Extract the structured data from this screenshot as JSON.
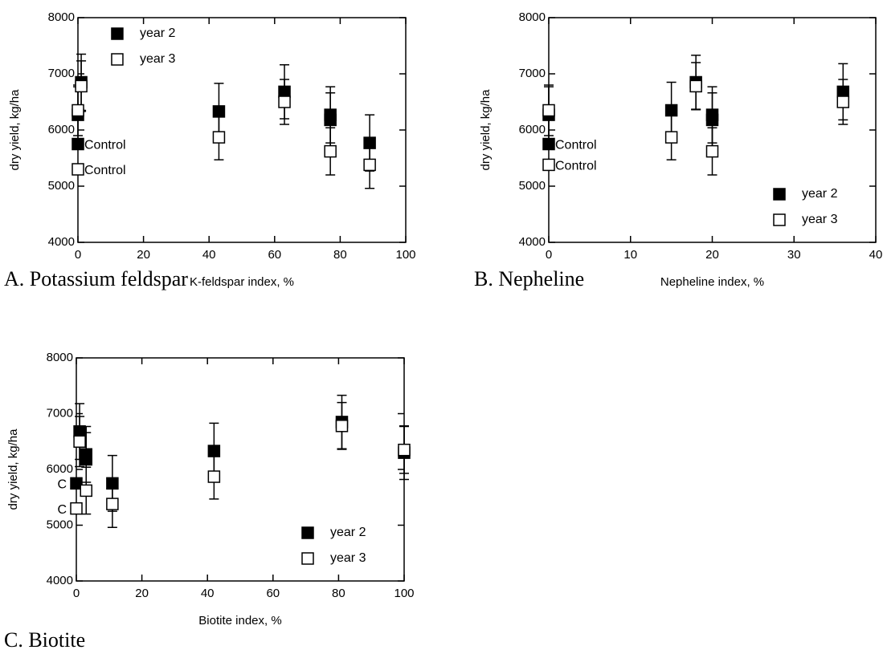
{
  "chart_data": [
    {
      "type": "scatter",
      "title": "A. Potassium feldspar",
      "x_label": "K-feldspar index, %",
      "y_label": "dry yield, kg/ha",
      "xlim": [
        0,
        100
      ],
      "xticks": [
        0,
        20,
        40,
        60,
        80,
        100
      ],
      "ylim": [
        4000,
        8000
      ],
      "yticks": [
        4000,
        5000,
        6000,
        7000,
        8000
      ],
      "legend": "upper left",
      "series": [
        {
          "name": "year 2",
          "color": "#000000",
          "filled": true,
          "x": [
            0,
            1,
            43,
            63,
            77,
            77,
            89
          ],
          "values": [
            6270,
            6850,
            6330,
            6680,
            6270,
            6180,
            5770
          ],
          "errors": [
            500,
            500,
            500,
            480,
            500,
            480,
            500
          ],
          "control": {
            "label": "Control",
            "x": 0,
            "value": 5750
          }
        },
        {
          "name": "year 3",
          "color": "#000000",
          "filled": false,
          "x": [
            0,
            1,
            43,
            63,
            77,
            89
          ],
          "values": [
            6350,
            6780,
            5870,
            6500,
            5620,
            5380
          ],
          "errors": [
            450,
            450,
            400,
            400,
            420,
            420
          ],
          "control": {
            "label": "Control",
            "x": 0,
            "value": 5300
          }
        }
      ]
    },
    {
      "type": "scatter",
      "title": "B. Nepheline",
      "x_label": "Nepheline index, %",
      "y_label": "dry yield, kg/ha",
      "xlim": [
        0,
        40
      ],
      "xticks": [
        0,
        10,
        20,
        30,
        40
      ],
      "ylim": [
        4000,
        8000
      ],
      "yticks": [
        4000,
        5000,
        6000,
        7000,
        8000
      ],
      "legend": "lower right",
      "series": [
        {
          "name": "year 2",
          "color": "#000000",
          "filled": true,
          "x": [
            0,
            15,
            18,
            20,
            20,
            36
          ],
          "values": [
            6270,
            6350,
            6850,
            6270,
            6180,
            6680
          ],
          "errors": [
            500,
            500,
            480,
            500,
            480,
            500
          ],
          "control": {
            "label": "Control",
            "x": 0,
            "value": 5750
          }
        },
        {
          "name": "year 3",
          "color": "#000000",
          "filled": false,
          "x": [
            0,
            15,
            18,
            20,
            36
          ],
          "values": [
            6350,
            5870,
            6780,
            5620,
            6500
          ],
          "errors": [
            450,
            400,
            420,
            420,
            400
          ],
          "control": {
            "label": "Control",
            "x": 0,
            "value": 5380
          }
        }
      ]
    },
    {
      "type": "scatter",
      "title": "C. Biotite",
      "x_label": "Biotite index, %",
      "y_label": "dry yield, kg/ha",
      "xlim": [
        0,
        100
      ],
      "xticks": [
        0,
        20,
        40,
        60,
        80,
        100
      ],
      "ylim": [
        4000,
        8000
      ],
      "yticks": [
        4000,
        5000,
        6000,
        7000,
        8000
      ],
      "legend": "lower right",
      "series": [
        {
          "name": "year 2",
          "color": "#000000",
          "filled": true,
          "x": [
            1,
            3,
            3,
            11,
            42,
            81,
            100
          ],
          "values": [
            6680,
            6270,
            6180,
            5750,
            6330,
            6850,
            6300
          ],
          "errors": [
            500,
            500,
            480,
            500,
            500,
            480,
            480
          ],
          "control": {
            "label": "C",
            "x": 0,
            "value": 5750
          }
        },
        {
          "name": "year 3",
          "color": "#000000",
          "filled": false,
          "x": [
            1,
            3,
            11,
            42,
            81,
            100
          ],
          "values": [
            6500,
            5620,
            5380,
            5870,
            6780,
            6350
          ],
          "errors": [
            450,
            420,
            420,
            400,
            420,
            420
          ],
          "control": {
            "label": "C",
            "x": 0,
            "value": 5300
          }
        }
      ]
    }
  ]
}
